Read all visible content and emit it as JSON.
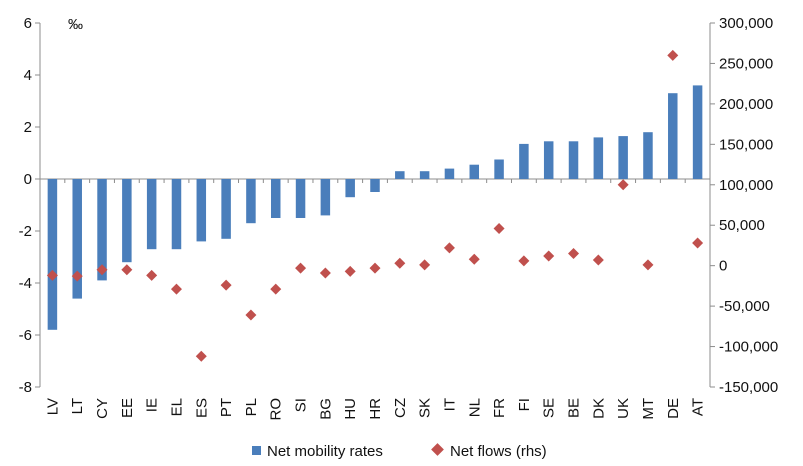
{
  "chart_data": {
    "type": "bar",
    "categories": [
      "LV",
      "LT",
      "CY",
      "EE",
      "IE",
      "EL",
      "ES",
      "PT",
      "PL",
      "RO",
      "SI",
      "BG",
      "HU",
      "HR",
      "CZ",
      "SK",
      "IT",
      "NL",
      "FR",
      "FI",
      "SE",
      "BE",
      "DK",
      "UK",
      "MT",
      "DE",
      "AT"
    ],
    "series": [
      {
        "name": "Net mobility rates",
        "type": "bar",
        "axis": "left",
        "color": "#4a7ebb",
        "values": [
          -5.8,
          -4.6,
          -3.9,
          -3.2,
          -2.7,
          -2.7,
          -2.4,
          -2.3,
          -1.7,
          -1.5,
          -1.5,
          -1.4,
          -0.7,
          -0.5,
          0.3,
          0.3,
          0.4,
          0.55,
          0.75,
          1.35,
          1.45,
          1.45,
          1.6,
          1.65,
          1.8,
          3.3,
          3.6
        ]
      },
      {
        "name": "Net flows (rhs)",
        "type": "scatter",
        "axis": "right",
        "marker": "diamond",
        "color": "#c0504d",
        "values": [
          -12000,
          -13000,
          -5000,
          -5000,
          -12000,
          -29000,
          -112000,
          -24000,
          -61000,
          -29000,
          -3000,
          -9000,
          -7000,
          -3000,
          3000,
          1000,
          22000,
          8000,
          46000,
          6000,
          12000,
          15000,
          7000,
          100000,
          1000,
          260000,
          28000
        ]
      }
    ],
    "yaxis_left": {
      "min": -8,
      "max": 6,
      "ticks": [
        6,
        4,
        2,
        0,
        -2,
        -4,
        -6,
        -8
      ],
      "unit": "‰"
    },
    "yaxis_right": {
      "min": -150000,
      "max": 300000,
      "ticks": [
        300000,
        250000,
        200000,
        150000,
        100000,
        50000,
        0,
        -50000,
        -100000,
        -150000
      ],
      "tick_labels": [
        "300,000",
        "250,000",
        "200,000",
        "150,000",
        "100,000",
        "50,000",
        "0",
        "-50,000",
        "-100,000",
        "-150,000"
      ]
    },
    "grid": false,
    "legend": {
      "position": "bottom",
      "entries": [
        "Net mobility rates",
        "Net flows (rhs)"
      ]
    }
  }
}
